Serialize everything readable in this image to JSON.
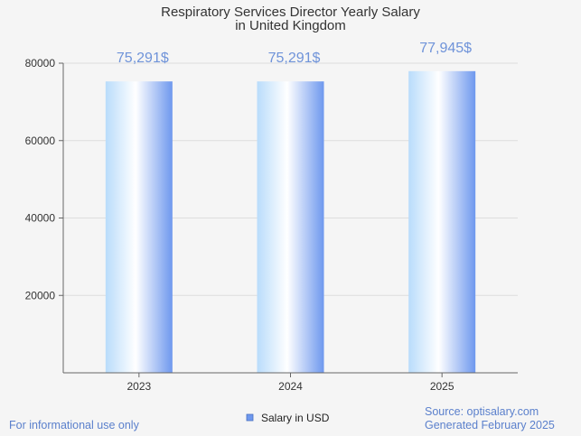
{
  "chart_data": {
    "type": "bar",
    "title_lines": [
      "Respiratory Services Director Yearly Salary",
      "in United Kingdom"
    ],
    "categories": [
      "2023",
      "2024",
      "2025"
    ],
    "series": [
      {
        "name": "Salary in USD",
        "values": [
          75291,
          75291,
          77945
        ]
      }
    ],
    "data_labels": [
      "75,291$",
      "75,291$",
      "77,945$"
    ],
    "y_ticks": [
      "20000",
      "40000",
      "60000",
      "80000"
    ],
    "ylim": [
      0,
      80000
    ],
    "grid": true,
    "legend_position": "bottom-center",
    "colors": {
      "bar_light": "#ffffff",
      "bar_mid": "#b9dcfb",
      "bar_dark": "#6e98ee",
      "label": "#6f93d9",
      "footer": "#5b80cc",
      "legend_swatch": "#6e98ee"
    }
  },
  "footer": {
    "left": "For informational use only",
    "source": "Source: optisalary.com",
    "generated": "Generated February 2025"
  }
}
